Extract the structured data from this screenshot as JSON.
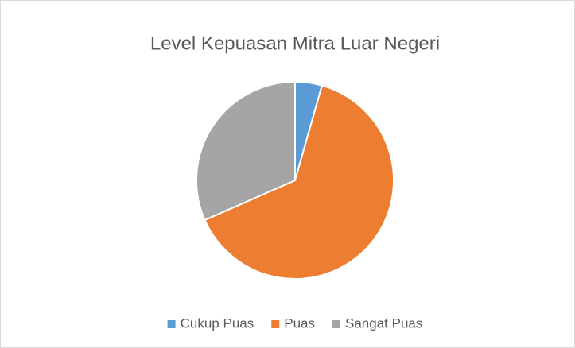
{
  "chart_data": {
    "type": "pie",
    "title": "Level Kepuasan Mitra Luar Negeri",
    "categories": [
      "Cukup Puas",
      "Puas",
      "Sangat Puas"
    ],
    "values": [
      4.4,
      64,
      31.6
    ],
    "colors": [
      "#5b9bd5",
      "#ed7d31",
      "#a5a5a5"
    ],
    "legend": "bottom"
  }
}
